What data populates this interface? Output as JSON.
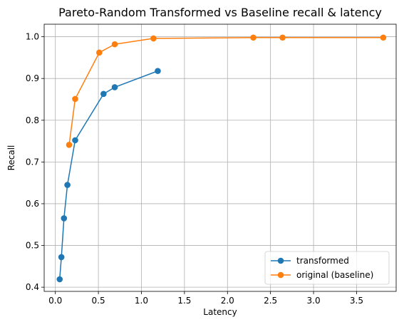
{
  "chart_data": {
    "type": "line",
    "title": "Pareto-Random Transformed vs Baseline recall & latency",
    "xlabel": "Latency",
    "ylabel": "Recall",
    "xlim": [
      -0.13,
      3.96
    ],
    "ylim": [
      0.39,
      1.03
    ],
    "xticks": [
      0.0,
      0.5,
      1.0,
      1.5,
      2.0,
      2.5,
      3.0,
      3.5
    ],
    "xtick_labels": [
      "0.0",
      "0.5",
      "1.0",
      "1.5",
      "2.0",
      "2.5",
      "3.0",
      "3.5"
    ],
    "yticks": [
      0.4,
      0.5,
      0.6,
      0.7,
      0.8,
      0.9,
      1.0
    ],
    "ytick_labels": [
      "0.4",
      "0.5",
      "0.6",
      "0.7",
      "0.8",
      "0.9",
      "1.0"
    ],
    "grid": true,
    "legend_position": "lower-right",
    "series": [
      {
        "name": "transformed",
        "color": "#1f77b4",
        "marker": "circle",
        "x": [
          0.05,
          0.07,
          0.1,
          0.14,
          0.23,
          0.56,
          0.69,
          1.19
        ],
        "y": [
          0.419,
          0.472,
          0.565,
          0.645,
          0.752,
          0.863,
          0.879,
          0.918
        ]
      },
      {
        "name": "original (baseline)",
        "color": "#ff7f0e",
        "marker": "circle",
        "x": [
          0.16,
          0.23,
          0.51,
          0.69,
          1.14,
          2.3,
          2.64,
          3.81
        ],
        "y": [
          0.741,
          0.851,
          0.962,
          0.982,
          0.996,
          0.998,
          0.998,
          0.998
        ]
      }
    ]
  }
}
